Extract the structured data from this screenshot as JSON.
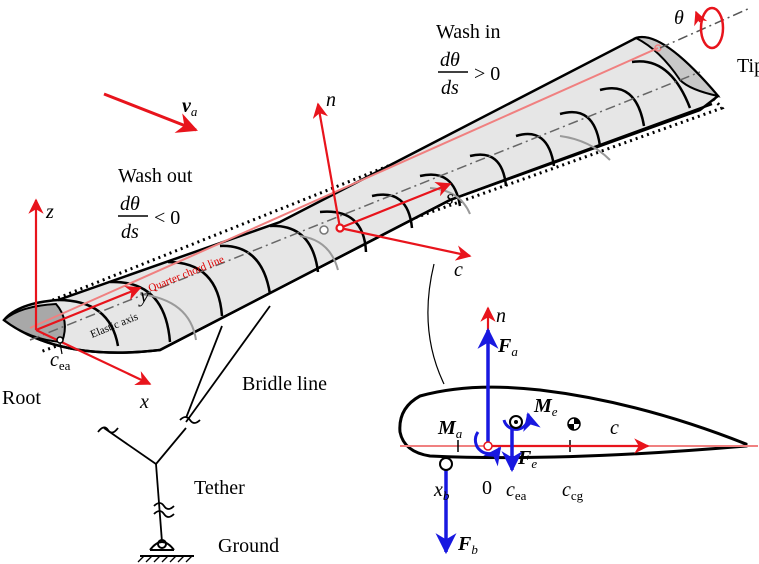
{
  "colors": {
    "red": "#e8141c",
    "blue": "#1818e0",
    "black": "#000000",
    "wing_fill": "#e6e6e6",
    "pink": "#f08080"
  },
  "labels": {
    "theta": "θ",
    "tip": "Tip",
    "wash_in_title": "Wash in",
    "wash_in_num": "dθ",
    "wash_in_den": "ds",
    "wash_in_rel": "> 0",
    "va_main": "v",
    "va_sub": "a",
    "n_top": "n",
    "wash_out_title": "Wash out",
    "wash_out_num": "dθ",
    "wash_out_den": "ds",
    "wash_out_rel": "< 0",
    "z": "z",
    "s": "s",
    "c_axis": "c",
    "y": "y",
    "quarter_chord_line": "Quarter chord line",
    "elastic_axis": "Elastic axis",
    "cea_main": "c",
    "cea_sub": "ea",
    "x": "x",
    "root": "Root",
    "bridle_line": "Bridle line",
    "tether": "Tether",
    "ground": "Ground",
    "n_section": "n",
    "Fa_main": "F",
    "Fa_sub": "a",
    "Me_main": "M",
    "Me_sub": "e",
    "Ma_main": "M",
    "Ma_sub": "a",
    "Fe_main": "F",
    "Fe_sub": "e",
    "c_section": "c",
    "xb_main": "x",
    "xb_sub": "b",
    "zero": "0",
    "cea2_main": "c",
    "cea2_sub": "ea",
    "ccg_main": "c",
    "ccg_sub": "cg",
    "Fb_main": "F",
    "Fb_sub": "b"
  }
}
